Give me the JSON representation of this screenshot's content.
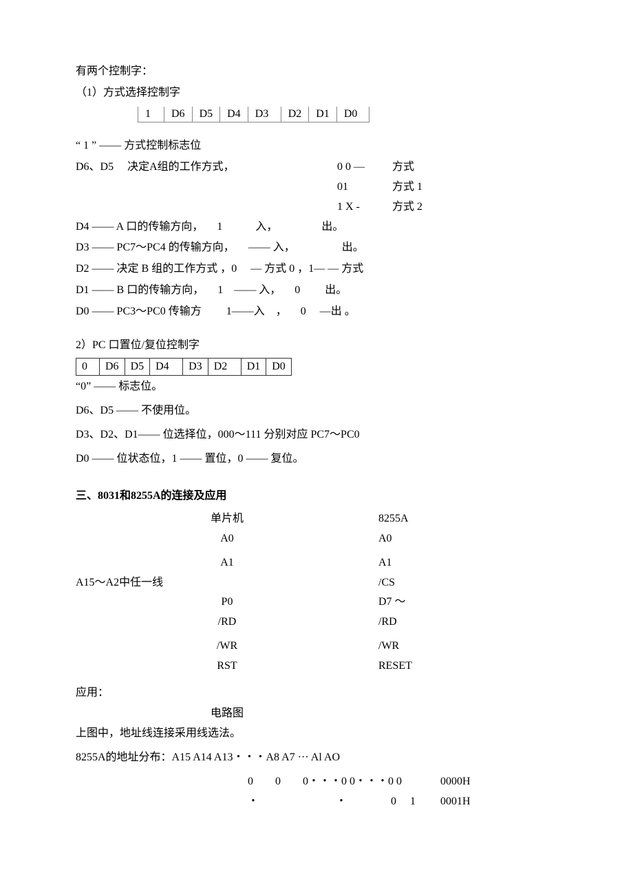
{
  "header": {
    "intro": "有两个控制字：",
    "sub1": "（1）方式选择控制字"
  },
  "bits1": [
    "1",
    "D6",
    "D5",
    "D4",
    "D3",
    "D2",
    "D1",
    "D0"
  ],
  "mode": {
    "l1": "“ 1 ” —— 方式控制标志位",
    "r2a": "D6、D5  决定A组的工作方式，",
    "r2b": "0 0 —",
    "r2c": "方式",
    "r3b": "01",
    "r3c": "方式  1",
    "r4b": "1 X -",
    "r4c": "方式  2",
    "r5": "D4 ——  A 口的传输方向，  1   入，    出。",
    "r6": "D3 ——  PC7～PC4 的传输方向，  —— 入，     出。",
    "r7": "D2 ——  决定  B 组的工作方式 ，0  — 方式  0 ，1— — 方式",
    "r8": "D1 ——  B 口的传输方向，  1 —— 入，  0   出。",
    "r9": "D0 ——  PC3～PC0 传输方   1——入 ，  0  —出  。"
  },
  "sec2": {
    "title": "2）PC 口置位/复位控制字",
    "bits": [
      "0",
      "D6",
      "D5",
      "D4",
      "D3",
      "D2",
      "D1",
      "D0"
    ],
    "l1": "“0” ——  标志位。",
    "l2": "D6、D5 ——  不使用位。",
    "l3": "D3、D2、D1——  位选择位，000～111 分别对应  PC7～PC0",
    "l4": "D0 ——  位状态位，1 ——  置位，0 ——  复位。"
  },
  "sec3": {
    "title": "三、8031和8255A的连接及应用",
    "head_l": "单片机",
    "head_r": "8255A",
    "rows": [
      {
        "l": "",
        "m": "A0",
        "r": "A0"
      },
      {
        "l": "",
        "m": "A1",
        "r": "A1",
        "sp": true
      },
      {
        "l": "A15～A2中任一线",
        "m": "",
        "r": "/CS"
      },
      {
        "l": "",
        "m": "P0",
        "r": "D7 ～"
      },
      {
        "l": "",
        "m": "/RD",
        "r": "/RD"
      },
      {
        "l": "",
        "m": "/WR",
        "r": "/WR",
        "sp": true
      },
      {
        "l": "",
        "m": "RST",
        "r": "RESET"
      }
    ],
    "app": "应用：",
    "circuit": "电路图",
    "note": "上图中，地址线连接采用线选法。",
    "addr_title": "8255A的地址分布：A15 A14 A13・・・A8 A7 ··· Al AO",
    "addr_rows": [
      {
        "a2": "0  0  0・・・0 0・・・0 0",
        "a3": "0000H"
      },
      {
        "a2": "・       ・    0   1",
        "a3": "0001H"
      }
    ]
  }
}
